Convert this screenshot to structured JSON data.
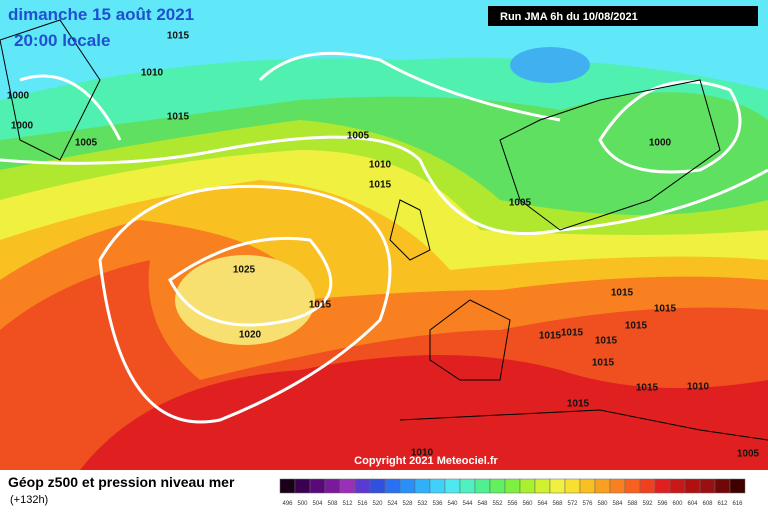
{
  "header": {
    "date": "dimanche 15 août 2021",
    "time": "20:00 locale",
    "run": "Run JMA 6h du 10/08/2021"
  },
  "isobar_labels": [
    "1015",
    "1010",
    "1000",
    "1000",
    "1015",
    "1005",
    "1005",
    "1010",
    "1015",
    "1005",
    "1000",
    "1025",
    "1015",
    "1020",
    "1015",
    "1015",
    "1015",
    "1015",
    "1015",
    "1015",
    "1015",
    "1015",
    "1010",
    "1015",
    "1010",
    "1005"
  ],
  "copyright": "Copyright 2021 Meteociel.fr",
  "footer": {
    "title": "Géop z500 et pression niveau mer",
    "lead": "(+132h)"
  },
  "scale": {
    "labels": [
      "496",
      "500",
      "504",
      "508",
      "512",
      "516",
      "520",
      "524",
      "528",
      "532",
      "536",
      "540",
      "544",
      "548",
      "552",
      "556",
      "560",
      "564",
      "568",
      "572",
      "576",
      "580",
      "584",
      "588",
      "592",
      "596",
      "600",
      "604",
      "608",
      "612",
      "616"
    ],
    "colors": [
      "#1a0018",
      "#3c0050",
      "#5a0a78",
      "#7a1a9a",
      "#9a30b8",
      "#5a3ad0",
      "#3050e0",
      "#2a70f0",
      "#2a90f8",
      "#30b0f8",
      "#40d0f8",
      "#50e8f0",
      "#50f0c0",
      "#50f090",
      "#60f060",
      "#80f040",
      "#a8f030",
      "#d0f030",
      "#f0f040",
      "#f8e030",
      "#f8c020",
      "#f8a020",
      "#f88020",
      "#f86020",
      "#f04020",
      "#e02020",
      "#c81818",
      "#b01010",
      "#981010",
      "#700808",
      "#400000"
    ]
  }
}
